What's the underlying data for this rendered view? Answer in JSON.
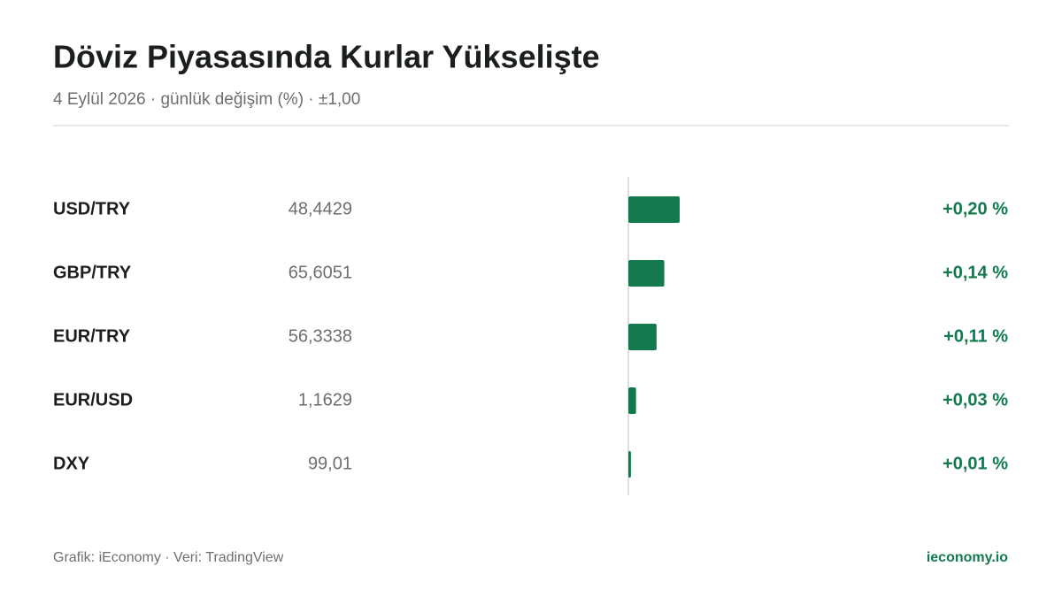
{
  "chart_data": {
    "type": "bar",
    "orientation": "horizontal",
    "title": "Döviz Piyasasında Kurlar Yükselişte",
    "subtitle": "4 Eylül 2026 · günlük değişim (%) · ±1,00",
    "categories": [
      "USD/TRY",
      "GBP/TRY",
      "EUR/TRY",
      "EUR/USD",
      "DXY"
    ],
    "prices": [
      "48,4429",
      "65,6051",
      "56,3338",
      "1,1629",
      "99,01"
    ],
    "values": [
      0.2,
      0.14,
      0.11,
      0.03,
      0.01
    ],
    "value_labels": [
      "+0,20 %",
      "+0,14 %",
      "+0,11 %",
      "+0,03 %",
      "+0,01 %"
    ],
    "color": "#137a4d",
    "xlim": [
      -1,
      1
    ]
  },
  "footer": {
    "source": "Grafik: iEconomy · Veri: TradingView",
    "brand": "ieconomy.io"
  }
}
